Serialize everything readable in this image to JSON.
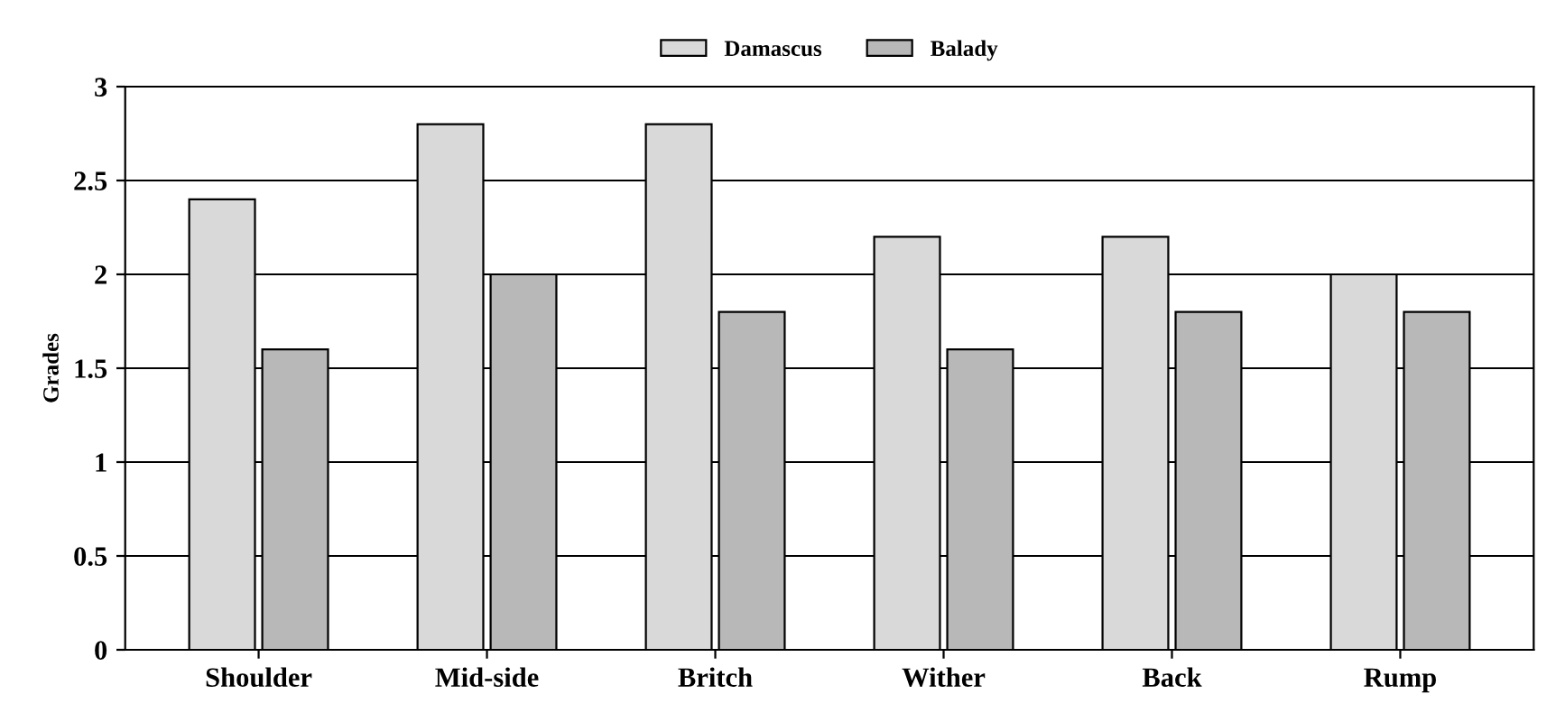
{
  "chart_data": {
    "type": "bar",
    "ylabel": "Grades",
    "categories": [
      "Shoulder",
      "Mid-side",
      "Britch",
      "Wither",
      "Back",
      "Rump"
    ],
    "series": [
      {
        "name": "Damascus",
        "color": "#d9d9d9",
        "values": [
          2.4,
          2.8,
          2.8,
          2.2,
          2.2,
          2.0
        ]
      },
      {
        "name": "Balady",
        "color": "#b8b8b8",
        "values": [
          1.6,
          2.0,
          1.8,
          1.6,
          1.8,
          1.8
        ]
      }
    ],
    "ylim": [
      0,
      3
    ],
    "yticks": [
      0,
      0.5,
      1,
      1.5,
      2,
      2.5,
      3
    ],
    "grid": "y",
    "legend": "top"
  }
}
